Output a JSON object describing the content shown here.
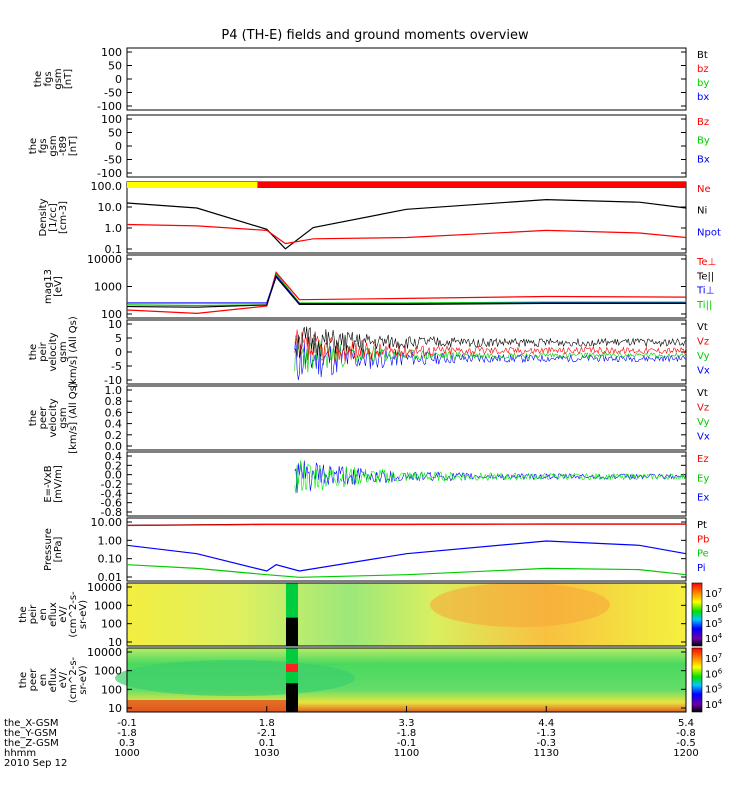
{
  "title": "P4 (TH-E) fields and ground moments overview",
  "colors": {
    "black": "#000000",
    "red": "#ff0000",
    "green": "#00cc00",
    "blue": "#0000ff",
    "lightgreen": "#00ee00",
    "yellow": "#ffff00",
    "orange": "#ff8800",
    "cyan": "#00ccff"
  },
  "panels": [
    {
      "id": "fgs-gsm",
      "ylabel": [
        "the",
        "fgs",
        "gsm",
        "[nT]"
      ],
      "yticks": [
        "100",
        "50",
        "0",
        "-50",
        "-100"
      ],
      "ylim": [
        -100,
        100
      ],
      "legend": [
        {
          "t": "Bt",
          "c": "black"
        },
        {
          "t": "bz",
          "c": "red"
        },
        {
          "t": "by",
          "c": "green"
        },
        {
          "t": "bx",
          "c": "blue"
        }
      ]
    },
    {
      "id": "fgs-gsm-t89",
      "ylabel": [
        "the",
        "fgs",
        "gsm",
        "-t89",
        "[nT]"
      ],
      "yticks": [
        "100",
        "50",
        "0",
        "-50",
        "-100"
      ],
      "ylim": [
        -100,
        100
      ],
      "legend": [
        {
          "t": "Bz",
          "c": "red"
        },
        {
          "t": "By",
          "c": "green"
        },
        {
          "t": "Bx",
          "c": "blue"
        }
      ]
    },
    {
      "id": "density",
      "ylabel": [
        "Density",
        "[1/cc]",
        "[cm-3]"
      ],
      "yticks": [
        "100.0",
        "10.0",
        "1.0",
        "0.1"
      ],
      "log": true,
      "ylim": [
        0.1,
        100
      ],
      "legend": [
        {
          "t": "Ne",
          "c": "red"
        },
        {
          "t": "Ni",
          "c": "black"
        },
        {
          "t": "Npot",
          "c": "blue"
        }
      ]
    },
    {
      "id": "temp",
      "ylabel": [
        "mag13",
        "[eV]"
      ],
      "yticks": [
        "10000",
        "1000",
        "100"
      ],
      "log": true,
      "ylim": [
        100,
        10000
      ],
      "legend": [
        {
          "t": "Te⊥",
          "c": "red"
        },
        {
          "t": "Te||",
          "c": "black"
        },
        {
          "t": "Ti⊥",
          "c": "blue"
        },
        {
          "t": "Ti||",
          "c": "green"
        }
      ]
    },
    {
      "id": "peir-vel",
      "ylabel": [
        "the",
        "peir",
        "velocity",
        "gsm",
        "[km/s] (All Qs)"
      ],
      "yticks": [
        "10",
        "5",
        "0",
        "-5",
        "-10"
      ],
      "ylim": [
        -10,
        10
      ],
      "legend": [
        {
          "t": "Vt",
          "c": "black"
        },
        {
          "t": "Vz",
          "c": "red"
        },
        {
          "t": "Vy",
          "c": "green"
        },
        {
          "t": "Vx",
          "c": "blue"
        }
      ]
    },
    {
      "id": "peer-vel",
      "ylabel": [
        "the",
        "peer",
        "velocity",
        "gsm",
        "[km/s] (All Qs)"
      ],
      "yticks": [
        "1.0",
        "0.8",
        "0.6",
        "0.4",
        "0.2",
        "0.0"
      ],
      "ylim": [
        0,
        1
      ],
      "legend": [
        {
          "t": "Vt",
          "c": "black"
        },
        {
          "t": "Vz",
          "c": "red"
        },
        {
          "t": "Vy",
          "c": "green"
        },
        {
          "t": "Vx",
          "c": "blue"
        }
      ]
    },
    {
      "id": "efield",
      "ylabel": [
        "E=-VxB",
        "[mV/m]"
      ],
      "yticks": [
        "0.4",
        "0.2",
        "0.0",
        "-0.2",
        "-0.4",
        "-0.6",
        "-0.8"
      ],
      "ylim": [
        -0.9,
        0.4
      ],
      "legend": [
        {
          "t": "Ez",
          "c": "red"
        },
        {
          "t": "Ey",
          "c": "green"
        },
        {
          "t": "Ex",
          "c": "blue"
        }
      ]
    },
    {
      "id": "pressure",
      "ylabel": [
        "Pressure",
        "[nPa]"
      ],
      "yticks": [
        "10.00",
        "1.00",
        "0.10",
        "0.01"
      ],
      "log": true,
      "ylim": [
        0.01,
        10
      ],
      "legend": [
        {
          "t": "Pt",
          "c": "black"
        },
        {
          "t": "Pb",
          "c": "red"
        },
        {
          "t": "Pe",
          "c": "green"
        },
        {
          "t": "Pi",
          "c": "blue"
        }
      ]
    },
    {
      "id": "peir-eflux",
      "ylabel": [
        "the",
        "peir",
        "en",
        "eflux",
        "eV/",
        "(cm^2-s-",
        "sr-eV)"
      ],
      "yticks": [
        "10000",
        "1000",
        "100",
        "10"
      ],
      "cbar": [
        "10^7",
        "10^6",
        "10^5",
        "10^4"
      ]
    },
    {
      "id": "peer-eflux",
      "ylabel": [
        "the",
        "peer",
        "en",
        "eflux",
        "eV/",
        "(cm^2-s-",
        "sr-eV)"
      ],
      "yticks": [
        "10000",
        "1000",
        "100",
        "10"
      ],
      "cbar": [
        "10^7",
        "10^6",
        "10^5",
        "10^4"
      ]
    }
  ],
  "xaxis": {
    "labels": [
      "the_X-GSM",
      "the_Y-GSM",
      "the_Z-GSM",
      "hhmm",
      "2010 Sep 12"
    ],
    "columns": [
      [
        "-0.1",
        "-1.8",
        "0.3",
        "1000"
      ],
      [
        "1.8",
        "-2.1",
        "0.1",
        "1030"
      ],
      [
        "3.3",
        "-1.8",
        "-0.1",
        "1100"
      ],
      [
        "4.4",
        "-1.3",
        "-0.3",
        "1130"
      ],
      [
        "5.4",
        "-0.8",
        "-0.5",
        "1200"
      ]
    ]
  },
  "chart_data": {
    "type": "line",
    "title": "P4 (TH-E) fields and ground moments overview",
    "x_hhmm": [
      "1000",
      "1030",
      "1100",
      "1130",
      "1200"
    ],
    "status_bar": [
      {
        "from": "1000",
        "to": "1028",
        "color": "yellow"
      },
      {
        "from": "1028",
        "to": "1200",
        "color": "red"
      }
    ],
    "series": [
      {
        "name": "Ni",
        "panel": "density",
        "x": [
          1000,
          1015,
          1030,
          1034,
          1040,
          1100,
          1130,
          1150,
          1200
        ],
        "y": [
          13,
          8,
          1.0,
          0.15,
          1.2,
          7,
          18,
          14,
          8
        ]
      },
      {
        "name": "Ne",
        "panel": "density",
        "x": [
          1000,
          1015,
          1030,
          1034,
          1040,
          1100,
          1130,
          1150,
          1200
        ],
        "y": [
          1.6,
          1.4,
          0.9,
          0.25,
          0.4,
          0.45,
          0.9,
          0.7,
          0.45
        ]
      },
      {
        "name": "Ti",
        "panel": "temp",
        "x": [
          1000,
          1015,
          1030,
          1032,
          1037,
          1100,
          1130,
          1200
        ],
        "y": [
          260,
          250,
          260,
          2500,
          300,
          300,
          320,
          320
        ]
      },
      {
        "name": "Te",
        "panel": "temp",
        "x": [
          1000,
          1015,
          1030,
          1032,
          1037,
          1100,
          1130,
          1200
        ],
        "y": [
          180,
          140,
          240,
          2800,
          380,
          420,
          480,
          460
        ]
      },
      {
        "name": "Pt",
        "panel": "pressure",
        "x": [
          1000,
          1030,
          1100,
          1130,
          1200
        ],
        "y": [
          4.5,
          5,
          5,
          5.2,
          5.2
        ]
      },
      {
        "name": "Pb",
        "panel": "pressure",
        "x": [
          1000,
          1030,
          1100,
          1130,
          1200
        ],
        "y": [
          4.4,
          4.9,
          4.9,
          5.1,
          5.1
        ]
      },
      {
        "name": "Pi",
        "panel": "pressure",
        "x": [
          1000,
          1015,
          1030,
          1032,
          1037,
          1100,
          1130,
          1150,
          1200
        ],
        "y": [
          0.5,
          0.2,
          0.03,
          0.06,
          0.03,
          0.2,
          0.8,
          0.5,
          0.2
        ]
      },
      {
        "name": "Pe",
        "panel": "pressure",
        "x": [
          1000,
          1015,
          1030,
          1037,
          1100,
          1130,
          1150,
          1200
        ],
        "y": [
          0.06,
          0.04,
          0.02,
          0.015,
          0.02,
          0.04,
          0.035,
          0.02
        ]
      }
    ]
  }
}
